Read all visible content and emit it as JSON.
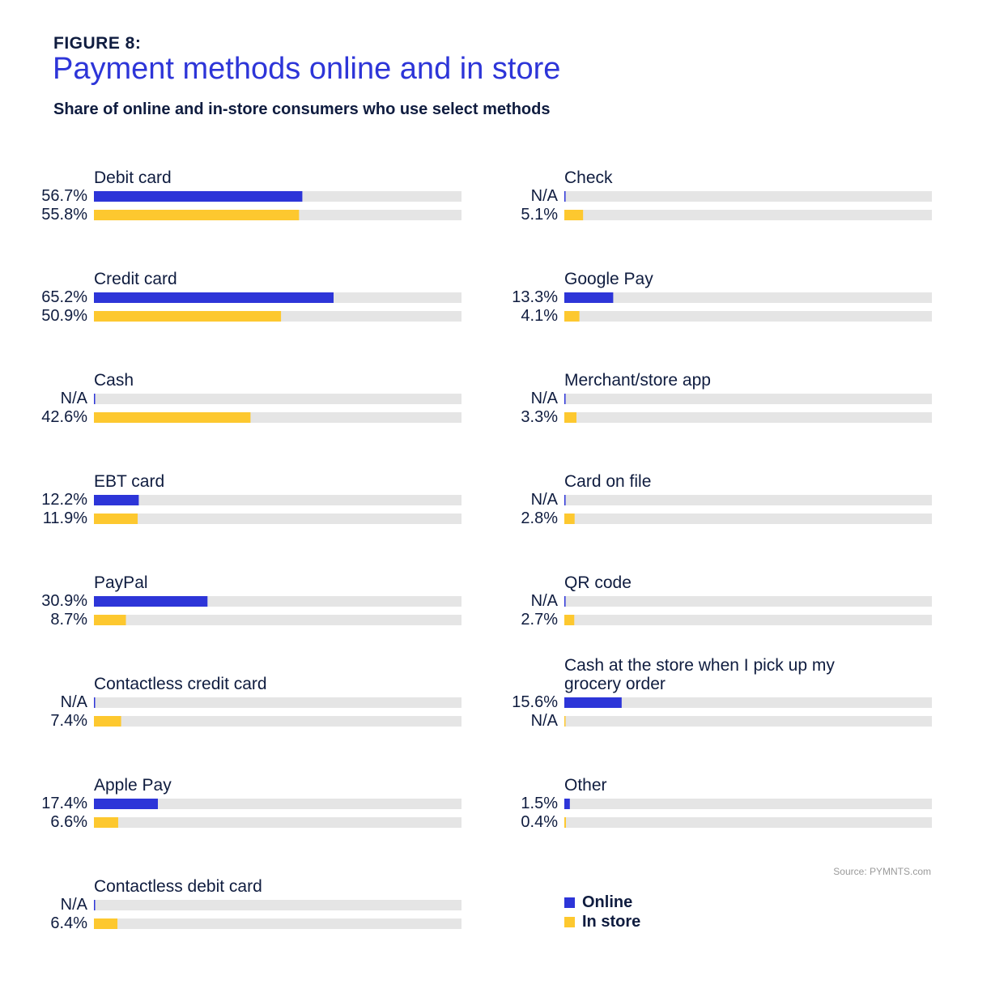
{
  "figure_label": "FIGURE 8:",
  "title": "Payment methods online and in store",
  "subtitle": "Share of online and in-store consumers who use select methods",
  "source": "Source: PYMNTS.com",
  "colors": {
    "online": "#2d35d8",
    "in_store": "#fdc82f",
    "track": "#e5e5e5"
  },
  "legend": [
    {
      "label": "Online",
      "color": "#2d35d8"
    },
    {
      "label": "In store",
      "color": "#fdc82f"
    }
  ],
  "chart_data": {
    "type": "bar",
    "orientation": "horizontal",
    "xlim": [
      0,
      100
    ],
    "series": [
      {
        "name": "Online",
        "key": "online",
        "color": "#2d35d8"
      },
      {
        "name": "In store",
        "key": "in_store",
        "color": "#fdc82f"
      }
    ],
    "panels": [
      {
        "items": [
          {
            "label": "Debit card",
            "online": 56.7,
            "online_text": "56.7%",
            "in_store": 55.8,
            "in_store_text": "55.8%"
          },
          {
            "label": "Credit card",
            "online": 65.2,
            "online_text": "65.2%",
            "in_store": 50.9,
            "in_store_text": "50.9%"
          },
          {
            "label": "Cash",
            "online": null,
            "online_text": "N/A",
            "in_store": 42.6,
            "in_store_text": "42.6%"
          },
          {
            "label": "EBT card",
            "online": 12.2,
            "online_text": "12.2%",
            "in_store": 11.9,
            "in_store_text": "11.9%"
          },
          {
            "label": "PayPal",
            "online": 30.9,
            "online_text": "30.9%",
            "in_store": 8.7,
            "in_store_text": "8.7%"
          },
          {
            "label": "Contactless credit card",
            "online": null,
            "online_text": "N/A",
            "in_store": 7.4,
            "in_store_text": "7.4%"
          },
          {
            "label": "Apple Pay",
            "online": 17.4,
            "online_text": "17.4%",
            "in_store": 6.6,
            "in_store_text": "6.6%"
          },
          {
            "label": "Contactless debit card",
            "online": null,
            "online_text": "N/A",
            "in_store": 6.4,
            "in_store_text": "6.4%"
          }
        ]
      },
      {
        "items": [
          {
            "label": "Check",
            "online": null,
            "online_text": "N/A",
            "in_store": 5.1,
            "in_store_text": "5.1%"
          },
          {
            "label": "Google Pay",
            "online": 13.3,
            "online_text": "13.3%",
            "in_store": 4.1,
            "in_store_text": "4.1%"
          },
          {
            "label": "Merchant/store app",
            "online": null,
            "online_text": "N/A",
            "in_store": 3.3,
            "in_store_text": "3.3%"
          },
          {
            "label": "Card on file",
            "online": null,
            "online_text": "N/A",
            "in_store": 2.8,
            "in_store_text": "2.8%"
          },
          {
            "label": "QR code",
            "online": null,
            "online_text": "N/A",
            "in_store": 2.7,
            "in_store_text": "2.7%"
          },
          {
            "label": [
              "Cash at the store when I pick up my",
              "grocery order"
            ],
            "online": 15.6,
            "online_text": "15.6%",
            "in_store": null,
            "in_store_text": "N/A"
          },
          {
            "label": "Other",
            "online": 1.5,
            "online_text": "1.5%",
            "in_store": 0.4,
            "in_store_text": "0.4%"
          }
        ]
      }
    ]
  }
}
